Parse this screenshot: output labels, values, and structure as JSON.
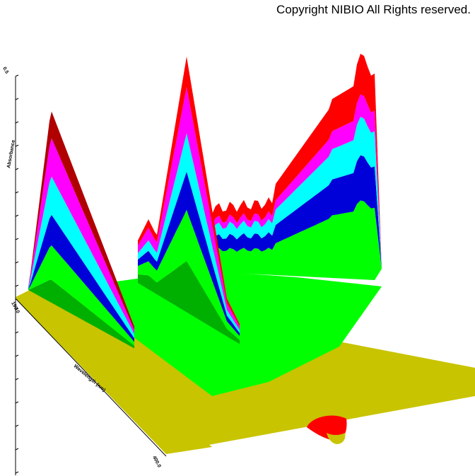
{
  "header": {
    "copyright": "Copyright NIBIO All Rights reserved."
  },
  "chart_data": {
    "type": "surface-3d",
    "title": "",
    "axes": {
      "vertical": {
        "label": "Absorbance",
        "tick_top": "0.5"
      },
      "depth": {
        "label": "Wavelength (nm)",
        "tick_start": "190.0",
        "tick_end": "400.0"
      }
    },
    "color_bands": [
      "#c8c400",
      "#00ff00",
      "#0000d8",
      "#00ffff",
      "#ff00ff",
      "#ff0000"
    ],
    "shading": {
      "band_dark": [
        "#9a9700",
        "#00b000",
        "#000098",
        "#00a8a8",
        "#b000b0",
        "#b00000"
      ]
    }
  }
}
